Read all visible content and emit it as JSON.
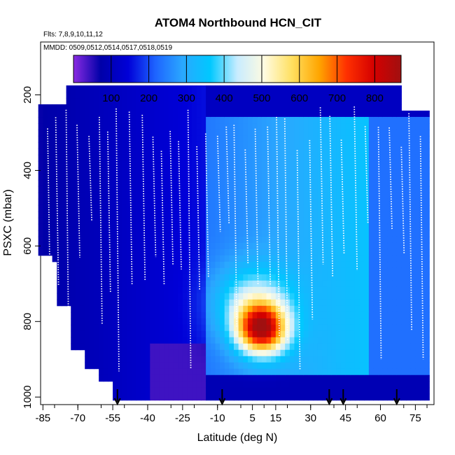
{
  "chart_data": {
    "type": "heatmap",
    "title": "ATOM4 Northbound HCN_CIT",
    "subtitle_flights": "Flts: 7,8,9,10,11,12",
    "subtitle_dates": "MMDD: 0509,0512,0514,0517,0518,0519",
    "xlabel": "Latitude (deg N)",
    "ylabel": "PSXC (mbar)",
    "x_tick_labels": [
      "-85",
      "-70",
      "-55",
      "-40",
      "-25",
      "-10",
      "5",
      "15",
      "30",
      "45",
      "60",
      "75"
    ],
    "y_tick_labels": [
      "200",
      "400",
      "600",
      "800",
      "1000"
    ],
    "xlim": [
      -86,
      83
    ],
    "ylim": [
      1020,
      60
    ],
    "y_reversed": true,
    "colorbar": {
      "range": [
        0,
        870
      ],
      "tick_labels": [
        "100",
        "200",
        "300",
        "400",
        "500",
        "600",
        "700",
        "800"
      ],
      "colors": [
        "#8a2be2",
        "#0000a8",
        "#0000d8",
        "#1e64ff",
        "#2aa8ff",
        "#00c8ff",
        "#c8ecff",
        "#fffbe0",
        "#ffe060",
        "#ffa500",
        "#ff3000",
        "#d40000",
        "#a01010"
      ]
    },
    "profile_markers_lat": [
      -53,
      -8,
      38,
      44,
      67
    ],
    "field_description_values": {
      "x_bins_lat": [
        -84,
        -78,
        -72,
        -66,
        -60,
        -54,
        -48,
        -42,
        -36,
        -30,
        -24,
        -18,
        -12,
        -6,
        0,
        6,
        12,
        18,
        24,
        30,
        36,
        42,
        48,
        54,
        60,
        66,
        72,
        78
      ],
      "p_bins_mbar": [
        200,
        250,
        300,
        350,
        400,
        450,
        500,
        550,
        600,
        650,
        700,
        750,
        800,
        850,
        900,
        950,
        1000
      ]
    }
  }
}
